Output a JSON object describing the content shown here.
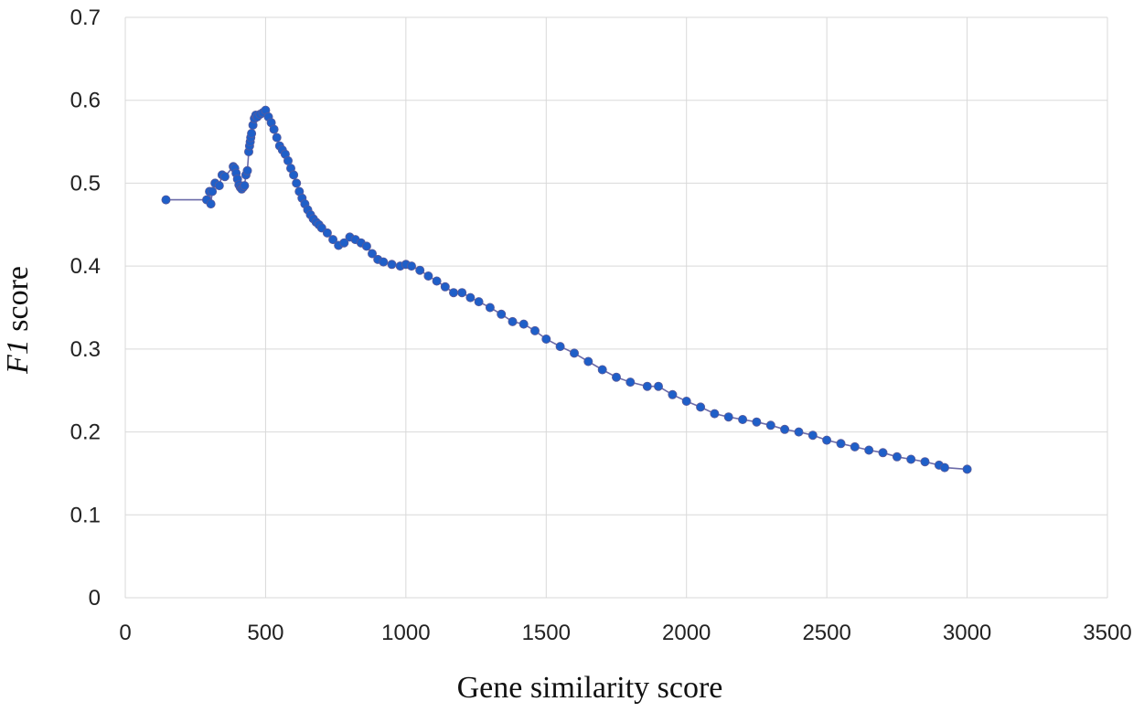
{
  "chart_data": {
    "type": "scatter",
    "title": "",
    "xlabel": "Gene similarity score",
    "ylabel_italic": "F1",
    "ylabel_rest": " score",
    "xlim": [
      0,
      3500
    ],
    "ylim": [
      0,
      0.7
    ],
    "xticks": [
      0,
      500,
      1000,
      1500,
      2000,
      2500,
      3000,
      3500
    ],
    "yticks": [
      0,
      0.1,
      0.2,
      0.3,
      0.4,
      0.5,
      0.6,
      0.7
    ],
    "grid": true,
    "legend": false,
    "colors": {
      "marker": "#1f5fc8",
      "line": "#6b6aa8",
      "grid": "#d9d9d9"
    },
    "series": [
      {
        "markers": true,
        "x": [
          145,
          290,
          300,
          305,
          310,
          320,
          335,
          345,
          355,
          385,
          390,
          395,
          400,
          405,
          410,
          415,
          420,
          425,
          430,
          435,
          440,
          443,
          445,
          447,
          450,
          455,
          460,
          465,
          470,
          480,
          490,
          500,
          510,
          520,
          530,
          540,
          550,
          560,
          570,
          580,
          590,
          600,
          610,
          620,
          630,
          640,
          650,
          660,
          670,
          680,
          690,
          700,
          720,
          740,
          760,
          780,
          800,
          820,
          840,
          860,
          880,
          900,
          920,
          950,
          980,
          1000,
          1020,
          1050,
          1080,
          1110,
          1140,
          1170,
          1200,
          1230,
          1260,
          1300,
          1340,
          1380,
          1420,
          1460,
          1500,
          1550,
          1600,
          1650,
          1700,
          1750,
          1800,
          1860,
          1900,
          1950,
          2000,
          2050,
          2100,
          2150,
          2200,
          2250,
          2300,
          2350,
          2400,
          2450,
          2500,
          2550,
          2600,
          2650,
          2700,
          2750,
          2800,
          2850,
          2900,
          2920,
          3000
        ],
        "y": [
          0.48,
          0.48,
          0.49,
          0.475,
          0.49,
          0.5,
          0.497,
          0.51,
          0.508,
          0.52,
          0.518,
          0.512,
          0.505,
          0.498,
          0.495,
          0.493,
          0.495,
          0.497,
          0.51,
          0.515,
          0.538,
          0.545,
          0.55,
          0.555,
          0.56,
          0.57,
          0.578,
          0.582,
          0.58,
          0.583,
          0.585,
          0.588,
          0.58,
          0.573,
          0.565,
          0.555,
          0.545,
          0.54,
          0.535,
          0.527,
          0.518,
          0.51,
          0.5,
          0.49,
          0.482,
          0.475,
          0.468,
          0.462,
          0.457,
          0.453,
          0.45,
          0.446,
          0.44,
          0.432,
          0.425,
          0.428,
          0.435,
          0.432,
          0.428,
          0.424,
          0.415,
          0.408,
          0.405,
          0.402,
          0.4,
          0.402,
          0.4,
          0.395,
          0.388,
          0.382,
          0.375,
          0.368,
          0.368,
          0.362,
          0.357,
          0.35,
          0.342,
          0.333,
          0.33,
          0.322,
          0.312,
          0.303,
          0.295,
          0.285,
          0.275,
          0.266,
          0.26,
          0.255,
          0.255,
          0.245,
          0.237,
          0.23,
          0.222,
          0.218,
          0.215,
          0.212,
          0.208,
          0.203,
          0.2,
          0.196,
          0.19,
          0.186,
          0.182,
          0.178,
          0.175,
          0.17,
          0.167,
          0.164,
          0.16,
          0.157,
          0.155
        ]
      }
    ]
  }
}
